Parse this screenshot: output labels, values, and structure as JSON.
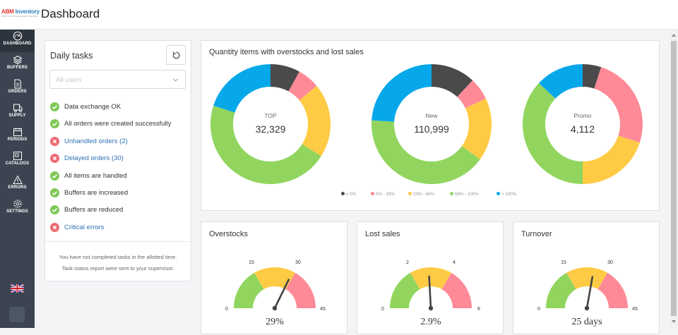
{
  "app": {
    "logo_primary": "ABM",
    "logo_secondary": "Inventory",
    "logo_tagline": "SUPPLY CHAIN MANAGEMENT SOLUTIONS"
  },
  "header": {
    "title": "Dashboard"
  },
  "sidebar": {
    "items": [
      {
        "label": "DASHBOARD",
        "icon": "speedometer-icon",
        "active": true
      },
      {
        "label": "BUFFERS",
        "icon": "layers-icon"
      },
      {
        "label": "ORDERS",
        "icon": "document-icon"
      },
      {
        "label": "SUPPLY",
        "icon": "truck-icon"
      },
      {
        "label": "PERIODS",
        "icon": "calendar-icon"
      },
      {
        "label": "CATALOGS",
        "icon": "catalog-icon"
      },
      {
        "label": "ERRORS",
        "icon": "warning-icon"
      },
      {
        "label": "SETTINGS",
        "icon": "gear-icon"
      }
    ],
    "language_icon": "uk-flag-icon"
  },
  "tasks": {
    "title": "Daily tasks",
    "refresh_icon": "refresh-icon",
    "user_select_placeholder": "All users",
    "items": [
      {
        "label": "Data exchange OK",
        "status": "ok"
      },
      {
        "label": "All orders were created successfully",
        "status": "ok"
      },
      {
        "label": "Unhandled orders (2)",
        "status": "error"
      },
      {
        "label": "Delayed orders (30)",
        "status": "error"
      },
      {
        "label": "All items are handled",
        "status": "ok"
      },
      {
        "label": "Buffers are increased",
        "status": "ok"
      },
      {
        "label": "Buffers are reduced",
        "status": "ok"
      },
      {
        "label": "Critical errors",
        "status": "error"
      }
    ],
    "note_line1": "You have not completed tasks in the allotted time.",
    "note_line2": "Task status report were sent to your supervisor."
  },
  "overstocks_panel": {
    "title": "Quantity items with overstocks and lost sales",
    "colors": {
      "black": "#4a4a4a",
      "red": "#ff8a97",
      "yellow": "#ffcb45",
      "green": "#91d55e",
      "blue": "#07a8ea"
    },
    "donuts": [
      {
        "label": "TOP",
        "value": "32,329",
        "segments": [
          0.08,
          0.06,
          0.2,
          0.46,
          0.2
        ]
      },
      {
        "label": "New",
        "value": "110,999",
        "segments": [
          0.12,
          0.06,
          0.17,
          0.41,
          0.24
        ]
      },
      {
        "label": "Promo",
        "value": "4,112",
        "segments": [
          0.05,
          0.25,
          0.2,
          0.37,
          0.13
        ]
      }
    ],
    "legend": [
      {
        "label": "≤ 0%",
        "color": "#4a4a4a"
      },
      {
        "label": "0% - 33%",
        "color": "#ff8a97"
      },
      {
        "label": "33% - 66%",
        "color": "#ffcb45"
      },
      {
        "label": "66% - 100%",
        "color": "#91d55e"
      },
      {
        "label": "> 100%",
        "color": "#07a8ea"
      }
    ]
  },
  "gauges": [
    {
      "title": "Overstocks",
      "ticks": [
        "0",
        "15",
        "30",
        "45"
      ],
      "value_text": "29%",
      "value": 29,
      "max": 45
    },
    {
      "title": "Lost sales",
      "ticks": [
        "0",
        "2",
        "4",
        "6"
      ],
      "value_text": "2.9%",
      "value": 2.9,
      "max": 6
    },
    {
      "title": "Turnover",
      "ticks": [
        "0",
        "15",
        "30",
        "45"
      ],
      "value_text": "25 days",
      "value": 25,
      "max": 45
    }
  ]
}
